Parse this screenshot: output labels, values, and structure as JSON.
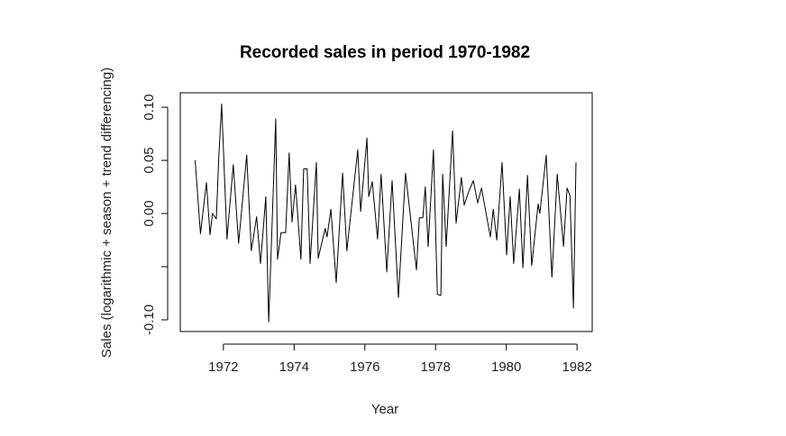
{
  "chart_data": {
    "type": "line",
    "title": "Recorded sales in period 1970-1982",
    "xlabel": "Year",
    "ylabel": "Sales (logarithmic + season + trend differencing)",
    "xlim": [
      1970.78,
      1982.43
    ],
    "ylim": [
      -0.111,
      0.1136
    ],
    "grid": false,
    "x_ticks": [
      1972,
      1974,
      1976,
      1978,
      1980,
      1982
    ],
    "x_tick_labels": [
      "1972",
      "1974",
      "1976",
      "1978",
      "1980",
      "1982"
    ],
    "y_ticks": [
      -0.1,
      -0.05,
      0.0,
      0.05,
      0.1
    ],
    "y_tick_labels": [
      "-0.10",
      "",
      "0.00",
      "0.05",
      "0.10"
    ],
    "series": [
      {
        "name": "sales",
        "color": "#000000",
        "points": [
          [
            1971.2,
            0.05
          ],
          [
            1971.35,
            -0.019
          ],
          [
            1971.52,
            0.029
          ],
          [
            1971.62,
            -0.02
          ],
          [
            1971.69,
            0.0
          ],
          [
            1971.8,
            -0.005
          ],
          [
            1971.87,
            0.054
          ],
          [
            1971.95,
            0.103
          ],
          [
            1972.1,
            -0.024
          ],
          [
            1972.28,
            0.046
          ],
          [
            1972.43,
            -0.028
          ],
          [
            1972.66,
            0.055
          ],
          [
            1972.79,
            -0.035
          ],
          [
            1972.94,
            -0.003
          ],
          [
            1973.05,
            -0.047
          ],
          [
            1973.2,
            0.016
          ],
          [
            1973.28,
            -0.102
          ],
          [
            1973.48,
            0.089
          ],
          [
            1973.53,
            -0.043
          ],
          [
            1973.63,
            -0.018
          ],
          [
            1973.76,
            -0.018
          ],
          [
            1973.86,
            0.057
          ],
          [
            1973.94,
            -0.008
          ],
          [
            1974.04,
            0.027
          ],
          [
            1974.19,
            -0.043
          ],
          [
            1974.27,
            0.042
          ],
          [
            1974.37,
            0.042
          ],
          [
            1974.45,
            -0.047
          ],
          [
            1974.63,
            0.048
          ],
          [
            1974.68,
            -0.042
          ],
          [
            1974.88,
            -0.014
          ],
          [
            1974.93,
            -0.022
          ],
          [
            1975.04,
            0.004
          ],
          [
            1975.19,
            -0.065
          ],
          [
            1975.37,
            0.038
          ],
          [
            1975.49,
            -0.035
          ],
          [
            1975.8,
            0.06
          ],
          [
            1975.88,
            0.002
          ],
          [
            1976.06,
            0.071
          ],
          [
            1976.11,
            0.016
          ],
          [
            1976.21,
            0.03
          ],
          [
            1976.36,
            -0.024
          ],
          [
            1976.46,
            0.037
          ],
          [
            1976.62,
            -0.055
          ],
          [
            1976.77,
            0.031
          ],
          [
            1976.95,
            -0.079
          ],
          [
            1977.15,
            0.038
          ],
          [
            1977.46,
            -0.053
          ],
          [
            1977.54,
            -0.004
          ],
          [
            1977.64,
            -0.004
          ],
          [
            1977.71,
            0.025
          ],
          [
            1977.79,
            -0.031
          ],
          [
            1977.94,
            0.06
          ],
          [
            1978.05,
            -0.076
          ],
          [
            1978.15,
            -0.077
          ],
          [
            1978.2,
            0.037
          ],
          [
            1978.3,
            -0.031
          ],
          [
            1978.48,
            0.078
          ],
          [
            1978.58,
            -0.009
          ],
          [
            1978.73,
            0.034
          ],
          [
            1978.81,
            0.008
          ],
          [
            1978.94,
            0.021
          ],
          [
            1979.07,
            0.031
          ],
          [
            1979.19,
            0.01
          ],
          [
            1979.3,
            0.024
          ],
          [
            1979.55,
            -0.022
          ],
          [
            1979.63,
            0.004
          ],
          [
            1979.73,
            -0.025
          ],
          [
            1979.88,
            0.048
          ],
          [
            1980.01,
            -0.039
          ],
          [
            1980.11,
            0.016
          ],
          [
            1980.21,
            -0.047
          ],
          [
            1980.37,
            0.023
          ],
          [
            1980.47,
            -0.051
          ],
          [
            1980.6,
            0.036
          ],
          [
            1980.72,
            -0.049
          ],
          [
            1980.9,
            0.009
          ],
          [
            1980.95,
            0.0
          ],
          [
            1981.13,
            0.055
          ],
          [
            1981.29,
            -0.06
          ],
          [
            1981.44,
            0.037
          ],
          [
            1981.62,
            -0.031
          ],
          [
            1981.72,
            0.024
          ],
          [
            1981.8,
            0.017
          ],
          [
            1981.9,
            -0.089
          ],
          [
            1981.97,
            0.048
          ]
        ]
      }
    ]
  }
}
